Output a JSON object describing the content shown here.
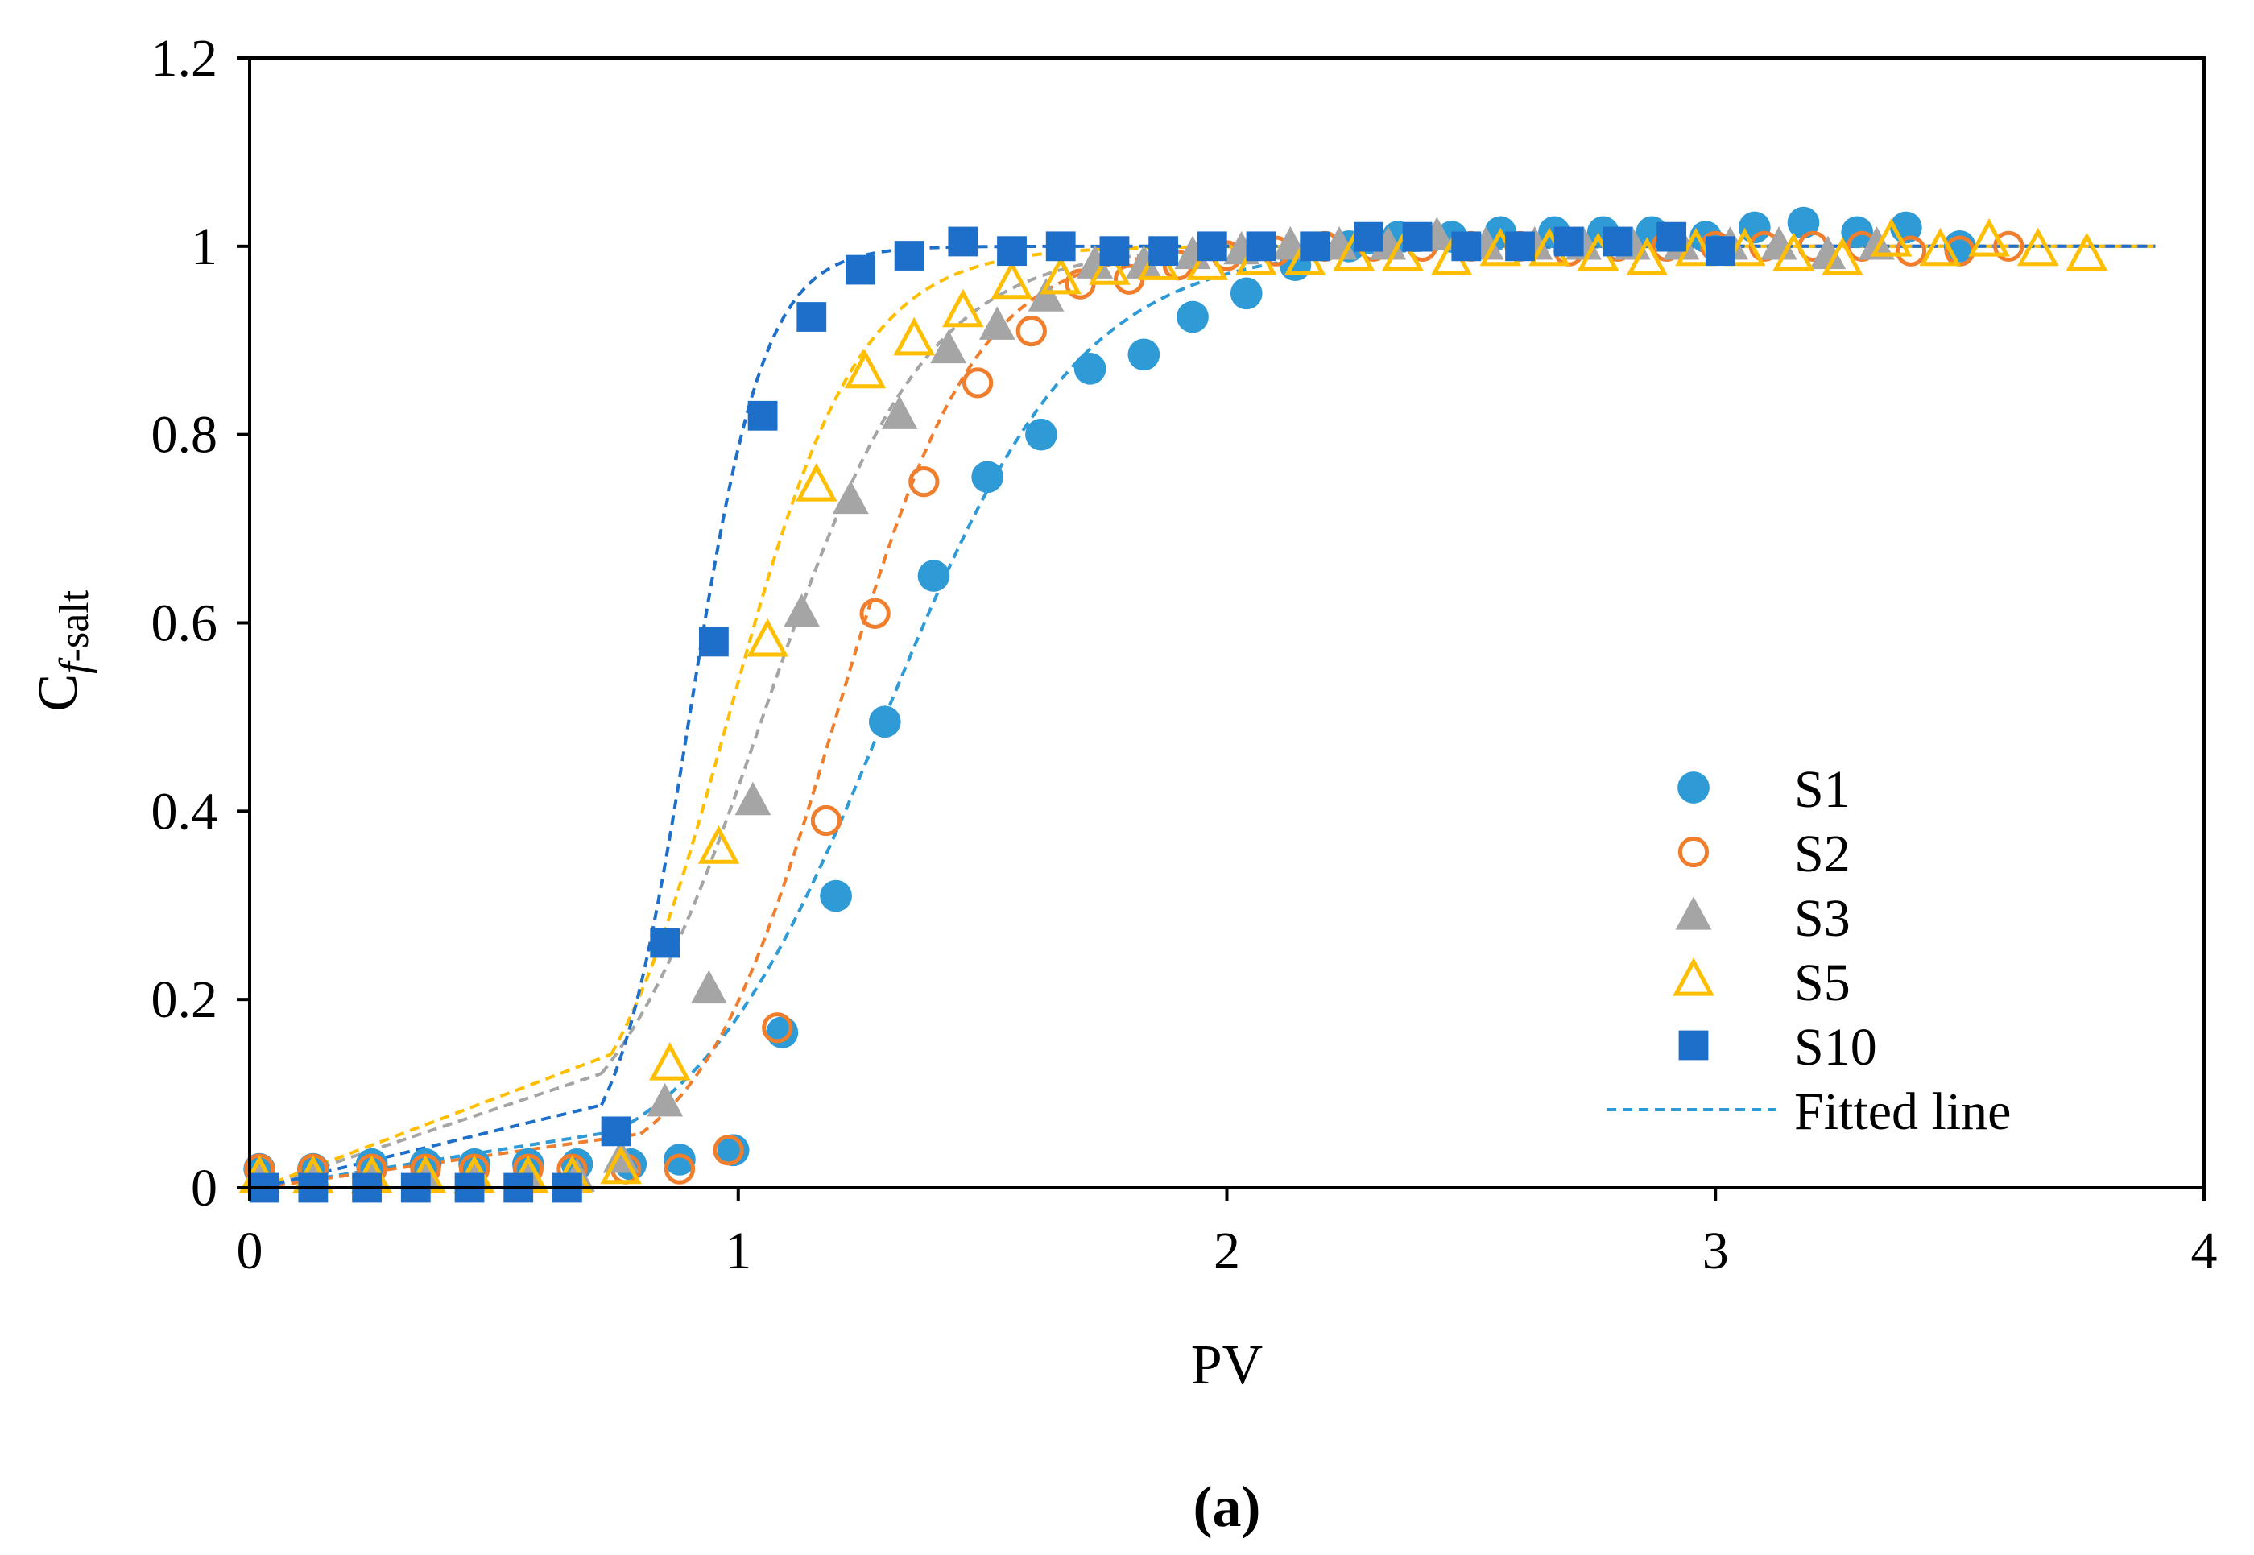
{
  "chart_data": {
    "type": "scatter",
    "title": "",
    "caption": "(a)",
    "xlabel": "PV",
    "ylabel": {
      "main": "C",
      "sub_italic": "f",
      "sub": "-salt"
    },
    "xlim": [
      0,
      4
    ],
    "ylim": [
      0,
      1.2
    ],
    "x_ticks": [
      0,
      1,
      2,
      3,
      4
    ],
    "x_tick_labels": [
      "0",
      "1",
      "2",
      "3",
      "4"
    ],
    "y_ticks": [
      0,
      0.2,
      0.4,
      0.6,
      0.8,
      1,
      1.2
    ],
    "y_tick_labels": [
      "0",
      "0.2",
      "0.4",
      "0.6",
      "0.8",
      "1",
      "1.2"
    ],
    "grid": false,
    "legend_position": "bottom-right",
    "fitted_line_label": "Fitted line",
    "series": [
      {
        "name": "S1",
        "marker": "circle-filled",
        "color": "#2E9AD6",
        "fit_mid": 1.3,
        "fit_k": 5.0,
        "fit_start": 0.75,
        "x": [
          0.02,
          0.13,
          0.25,
          0.36,
          0.46,
          0.57,
          0.67,
          0.78,
          0.88,
          0.99,
          1.09,
          1.2,
          1.3,
          1.4,
          1.51,
          1.62,
          1.72,
          1.83,
          1.93,
          2.04,
          2.14,
          2.25,
          2.35,
          2.46,
          2.56,
          2.67,
          2.77,
          2.87,
          2.98,
          3.08,
          3.18,
          3.29,
          3.39,
          3.5
        ],
        "y": [
          0.02,
          0.02,
          0.025,
          0.025,
          0.025,
          0.025,
          0.025,
          0.025,
          0.03,
          0.04,
          0.165,
          0.31,
          0.495,
          0.65,
          0.755,
          0.8,
          0.87,
          0.885,
          0.925,
          0.95,
          0.98,
          1.0,
          1.01,
          1.01,
          1.015,
          1.015,
          1.015,
          1.015,
          1.01,
          1.02,
          1.025,
          1.015,
          1.02,
          1.0
        ]
      },
      {
        "name": "S2",
        "marker": "circle-open",
        "color": "#F07E2C",
        "fit_mid": 1.2,
        "fit_k": 7.0,
        "fit_start": 0.8,
        "x": [
          0.02,
          0.13,
          0.25,
          0.36,
          0.46,
          0.57,
          0.66,
          0.77,
          0.88,
          0.98,
          1.08,
          1.18,
          1.28,
          1.38,
          1.49,
          1.6,
          1.7,
          1.8,
          1.9,
          2.0,
          2.1,
          2.2,
          2.3,
          2.4,
          2.5,
          2.6,
          2.7,
          2.8,
          2.9,
          3.0,
          3.1,
          3.2,
          3.3,
          3.4,
          3.5,
          3.6
        ],
        "y": [
          0.02,
          0.02,
          0.02,
          0.02,
          0.02,
          0.02,
          0.02,
          0.02,
          0.02,
          0.04,
          0.17,
          0.39,
          0.61,
          0.75,
          0.855,
          0.91,
          0.96,
          0.965,
          0.98,
          0.99,
          0.995,
          1.0,
          1.0,
          1.0,
          1.0,
          1.0,
          0.995,
          1.0,
          1.0,
          1.0,
          1.0,
          1.0,
          1.0,
          0.995,
          0.995,
          1.0
        ]
      },
      {
        "name": "S3",
        "marker": "triangle-filled",
        "color": "#A5A5A5",
        "fit_mid": 1.05,
        "fit_k": 6.0,
        "fit_start": 0.72,
        "x": [
          0.02,
          0.13,
          0.25,
          0.36,
          0.46,
          0.57,
          0.67,
          0.76,
          0.85,
          0.94,
          1.03,
          1.13,
          1.23,
          1.33,
          1.43,
          1.53,
          1.63,
          1.73,
          1.83,
          1.93,
          2.03,
          2.13,
          2.23,
          2.33,
          2.43,
          2.53,
          2.63,
          2.73,
          2.83,
          2.93,
          3.03,
          3.13,
          3.23,
          3.33
        ],
        "y": [
          0.01,
          0.01,
          0.01,
          0.01,
          0.01,
          0.01,
          0.01,
          0.03,
          0.09,
          0.21,
          0.41,
          0.61,
          0.73,
          0.82,
          0.89,
          0.915,
          0.945,
          0.98,
          0.98,
          0.99,
          0.995,
          1.0,
          1.0,
          1.0,
          1.01,
          1.0,
          1.0,
          1.0,
          1.0,
          1.0,
          1.0,
          1.0,
          0.99,
          1.0
        ]
      },
      {
        "name": "S5",
        "marker": "triangle-open",
        "color": "#FFBE00",
        "fit_mid": 0.98,
        "fit_k": 7.5,
        "fit_start": 0.74,
        "x": [
          0.02,
          0.13,
          0.25,
          0.36,
          0.46,
          0.57,
          0.66,
          0.76,
          0.86,
          0.96,
          1.06,
          1.16,
          1.26,
          1.36,
          1.46,
          1.56,
          1.66,
          1.76,
          1.86,
          1.96,
          2.06,
          2.16,
          2.26,
          2.36,
          2.46,
          2.56,
          2.66,
          2.76,
          2.86,
          2.96,
          3.06,
          3.16,
          3.26,
          3.36,
          3.46,
          3.56,
          3.66,
          3.76
        ],
        "y": [
          0.01,
          0.01,
          0.01,
          0.01,
          0.01,
          0.01,
          0.01,
          0.02,
          0.13,
          0.36,
          0.58,
          0.745,
          0.865,
          0.9,
          0.93,
          0.96,
          0.965,
          0.975,
          0.98,
          0.98,
          0.985,
          0.985,
          0.99,
          0.99,
          0.985,
          0.995,
          0.995,
          0.99,
          0.985,
          0.995,
          0.995,
          0.99,
          0.985,
          1.005,
          0.995,
          1.005,
          0.995,
          0.99
        ]
      },
      {
        "name": "S10",
        "marker": "square-filled",
        "color": "#1E6FC9",
        "fit_mid": 0.9,
        "fit_k": 13.0,
        "fit_start": 0.72,
        "x": [
          0.03,
          0.13,
          0.24,
          0.34,
          0.45,
          0.55,
          0.65,
          0.75,
          0.85,
          0.95,
          1.05,
          1.15,
          1.25,
          1.35,
          1.46,
          1.56,
          1.66,
          1.77,
          1.87,
          1.97,
          2.07,
          2.18,
          2.29,
          2.39,
          2.49,
          2.6,
          2.7,
          2.8,
          2.91,
          3.01
        ],
        "y": [
          0.0,
          0.0,
          0.0,
          0.0,
          0.0,
          0.0,
          0.0,
          0.06,
          0.26,
          0.58,
          0.82,
          0.925,
          0.975,
          0.99,
          1.005,
          0.995,
          1.0,
          0.995,
          0.995,
          1.0,
          1.0,
          1.0,
          1.01,
          1.01,
          1.0,
          1.0,
          1.005,
          1.005,
          1.01,
          0.995
        ]
      }
    ]
  }
}
